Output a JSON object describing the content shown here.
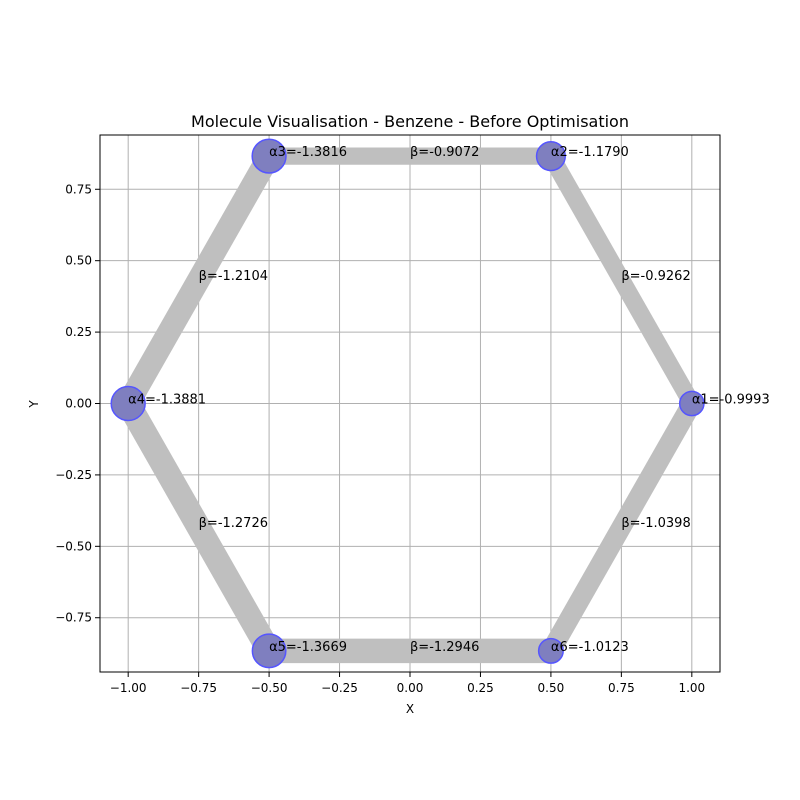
{
  "chart_data": {
    "type": "scatter",
    "title": "Molecule Visualisation - Benzene - Before Optimisation",
    "xlabel": "X",
    "ylabel": "Y",
    "xlim": [
      -1.1,
      1.1
    ],
    "ylim": [
      -0.94,
      0.94
    ],
    "grid": true,
    "x_ticks": [
      -1.0,
      -0.75,
      -0.5,
      -0.25,
      0.0,
      0.25,
      0.5,
      0.75,
      1.0
    ],
    "x_tick_labels": [
      "−1.00",
      "−0.75",
      "−0.50",
      "−0.25",
      "0.00",
      "0.25",
      "0.50",
      "0.75",
      "1.00"
    ],
    "y_ticks": [
      -0.75,
      -0.5,
      -0.25,
      0.0,
      0.25,
      0.5,
      0.75
    ],
    "y_tick_labels": [
      "−0.75",
      "−0.50",
      "−0.25",
      "0.00",
      "0.25",
      "0.50",
      "0.75"
    ],
    "atoms": [
      {
        "x": 1.0,
        "y": 0.0,
        "alpha": -0.9993,
        "label": "α1=-0.9993"
      },
      {
        "x": 0.5,
        "y": 0.866,
        "alpha": -1.179,
        "label": "α2=-1.1790"
      },
      {
        "x": -0.5,
        "y": 0.866,
        "alpha": -1.3816,
        "label": "α3=-1.3816"
      },
      {
        "x": -1.0,
        "y": 0.0,
        "alpha": -1.3881,
        "label": "α4=-1.3881"
      },
      {
        "x": -0.5,
        "y": -0.866,
        "alpha": -1.3669,
        "label": "α5=-1.3669"
      },
      {
        "x": 0.5,
        "y": -0.866,
        "alpha": -1.0123,
        "label": "α6=-1.0123"
      }
    ],
    "bonds": [
      {
        "from": 0,
        "to": 1,
        "beta": -0.9262,
        "label": "β=-0.9262"
      },
      {
        "from": 1,
        "to": 2,
        "beta": -0.9072,
        "label": "β=-0.9072"
      },
      {
        "from": 2,
        "to": 3,
        "beta": -1.2104,
        "label": "β=-1.2104"
      },
      {
        "from": 3,
        "to": 4,
        "beta": -1.2726,
        "label": "β=-1.2726"
      },
      {
        "from": 4,
        "to": 5,
        "beta": -1.2946,
        "label": "β=-1.2946"
      },
      {
        "from": 5,
        "to": 0,
        "beta": -1.0398,
        "label": "β=-1.0398"
      }
    ],
    "colors": {
      "atom_fill": "#7f7fbf",
      "atom_edge": "#5555ff",
      "bond": "#bfbfbf",
      "grid": "#b0b0b0"
    }
  }
}
